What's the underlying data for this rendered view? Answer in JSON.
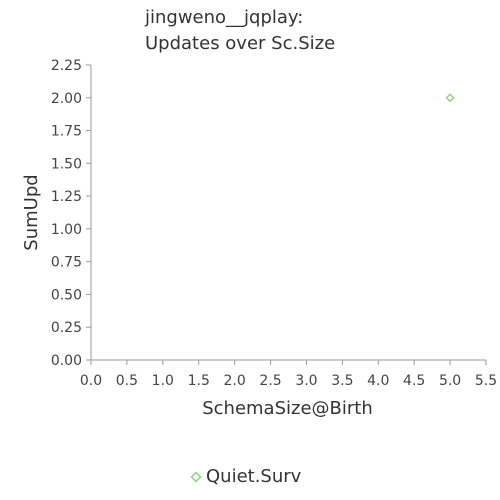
{
  "chart_data": {
    "type": "scatter",
    "title_lines": [
      "jingweno__jqplay:",
      "Updates over Sc.Size"
    ],
    "xlabel": "SchemaSize@Birth",
    "ylabel": "SumUpd",
    "xlim": [
      0.0,
      5.5
    ],
    "ylim": [
      0.0,
      2.25
    ],
    "xticks": [
      "0.0",
      "0.5",
      "1.0",
      "1.5",
      "2.0",
      "2.5",
      "3.0",
      "3.5",
      "4.0",
      "4.5",
      "5.0",
      "5.5"
    ],
    "yticks": [
      "0.00",
      "0.25",
      "0.50",
      "0.75",
      "1.00",
      "1.25",
      "1.50",
      "1.75",
      "2.00",
      "2.25"
    ],
    "grid": false,
    "legend_position": "bottom",
    "series": [
      {
        "name": "Quiet.Surv",
        "color": "#8fd18a",
        "marker": "diamond",
        "points": [
          {
            "x": 5.0,
            "y": 2.0
          }
        ]
      }
    ]
  }
}
